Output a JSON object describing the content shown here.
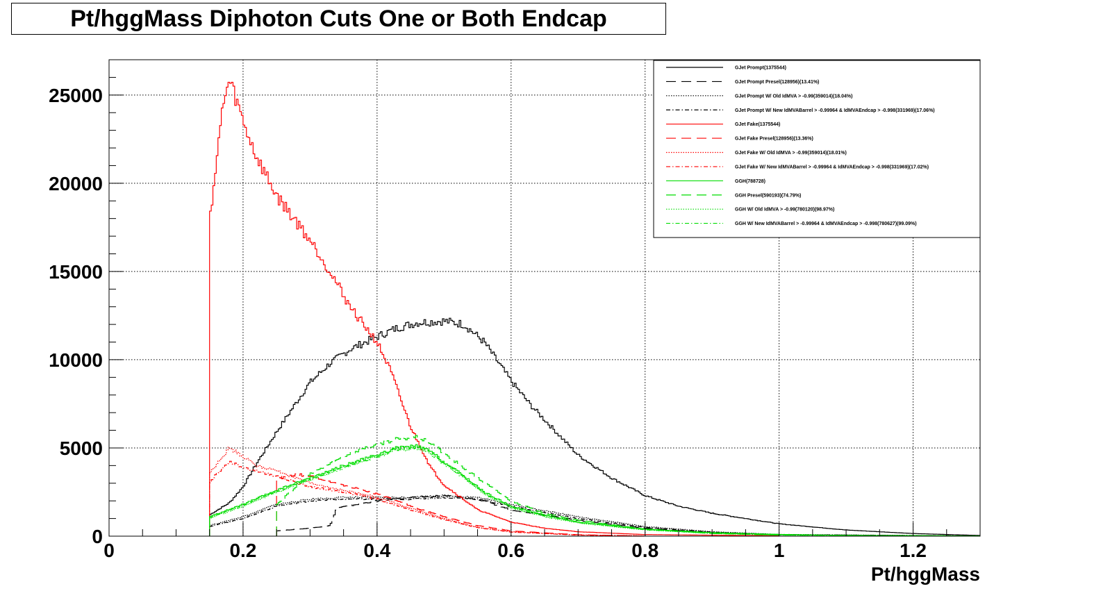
{
  "title": "Pt/hggMass Diphoton Cuts One or Both Endcap",
  "colors": {
    "prompt": "#000000",
    "fake": "#ff0000",
    "ggh": "#00dd00"
  },
  "chart_data": {
    "type": "line",
    "title": "Pt/hggMass Diphoton Cuts One or Both Endcap",
    "xlabel": "Pt/hggMass",
    "ylabel": "",
    "xlim": [
      0,
      1.3
    ],
    "ylim": [
      0,
      27000
    ],
    "grid": true,
    "legend_position": "top-right",
    "x_ticks": [
      "0",
      "0.2",
      "0.4",
      "0.6",
      "0.8",
      "1",
      "1.2"
    ],
    "y_ticks": [
      "0",
      "5000",
      "10000",
      "15000",
      "20000",
      "25000"
    ],
    "x_tick_values": [
      0,
      0.2,
      0.4,
      0.6,
      0.8,
      1.0,
      1.2
    ],
    "y_tick_values": [
      0,
      5000,
      10000,
      15000,
      20000,
      25000
    ],
    "series": [
      {
        "name": "GJet Prompt(1375544)",
        "color": "#000000",
        "style": "solid",
        "x": [
          0.15,
          0.18,
          0.2,
          0.22,
          0.25,
          0.28,
          0.3,
          0.33,
          0.36,
          0.4,
          0.43,
          0.46,
          0.5,
          0.53,
          0.56,
          0.6,
          0.63,
          0.66,
          0.7,
          0.75,
          0.8,
          0.85,
          0.9,
          1.0,
          1.1,
          1.2,
          1.3
        ],
        "y": [
          1200,
          1900,
          2800,
          4100,
          5900,
          7600,
          8700,
          9800,
          10600,
          11300,
          11800,
          12100,
          12200,
          12000,
          11000,
          8800,
          7400,
          6200,
          4600,
          3300,
          2300,
          1700,
          1300,
          700,
          350,
          150,
          40
        ]
      },
      {
        "name": "GJet Prompt Presel(128956)(13.41%)",
        "color": "#000000",
        "style": "dashed",
        "x": [
          0.25,
          0.3,
          0.33,
          0.34,
          0.4,
          0.45,
          0.5,
          0.55,
          0.6,
          0.7,
          0.8,
          0.9,
          1.0,
          1.3
        ],
        "y": [
          300,
          450,
          600,
          1600,
          2000,
          2200,
          2300,
          2100,
          1500,
          900,
          450,
          200,
          90,
          10
        ]
      },
      {
        "name": "GJet Prompt W/ Old IdMVA > -0.99(359014)(18.04%)",
        "color": "#000000",
        "style": "dotted",
        "x": [
          0.15,
          0.2,
          0.25,
          0.3,
          0.35,
          0.4,
          0.45,
          0.5,
          0.55,
          0.6,
          0.7,
          0.8,
          0.9,
          1.0,
          1.3
        ],
        "y": [
          600,
          1100,
          1800,
          2100,
          2200,
          2200,
          2200,
          2300,
          2200,
          1800,
          1100,
          550,
          250,
          100,
          10
        ]
      },
      {
        "name": "GJet Prompt W/ New IdMVABarrel > -0.99964 & IdMVAEndcap > -0.998(331969)(17.06%)",
        "color": "#000000",
        "style": "dashdot",
        "x": [
          0.15,
          0.2,
          0.25,
          0.3,
          0.35,
          0.4,
          0.45,
          0.5,
          0.55,
          0.6,
          0.7,
          0.8,
          0.9,
          1.0,
          1.3
        ],
        "y": [
          550,
          1000,
          1700,
          2000,
          2100,
          2100,
          2100,
          2200,
          2100,
          1700,
          1000,
          500,
          230,
          90,
          10
        ]
      },
      {
        "name": "GJet Fake(1375544)",
        "color": "#ff0000",
        "style": "solid",
        "x": [
          0.15,
          0.16,
          0.17,
          0.18,
          0.19,
          0.2,
          0.22,
          0.25,
          0.28,
          0.3,
          0.33,
          0.36,
          0.4,
          0.42,
          0.45,
          0.48,
          0.5,
          0.55,
          0.6,
          0.65,
          0.7,
          0.8,
          1.0
        ],
        "y": [
          18000,
          21000,
          24500,
          25800,
          24700,
          23500,
          21500,
          19300,
          17800,
          16800,
          15000,
          13000,
          11000,
          9400,
          6200,
          3900,
          2900,
          1500,
          800,
          450,
          250,
          90,
          20
        ]
      },
      {
        "name": "GJet Fake Presel(128956)(13.36%)",
        "color": "#ff0000",
        "style": "dashed",
        "x": [
          0.25,
          0.28,
          0.3,
          0.33,
          0.36,
          0.4,
          0.45,
          0.5,
          0.55,
          0.6,
          0.7,
          0.8
        ],
        "y": [
          3200,
          3500,
          3400,
          3100,
          2800,
          2400,
          1700,
          1100,
          600,
          300,
          80,
          10
        ]
      },
      {
        "name": "GJet Fake W/ Old IdMVA > -0.99(359014)(18.01%)",
        "color": "#ff0000",
        "style": "dotted",
        "x": [
          0.15,
          0.16,
          0.18,
          0.2,
          0.22,
          0.25,
          0.3,
          0.35,
          0.4,
          0.45,
          0.5,
          0.55,
          0.6,
          0.7,
          0.8
        ],
        "y": [
          3500,
          4100,
          5000,
          4500,
          4000,
          3700,
          3000,
          2600,
          2200,
          1600,
          1000,
          500,
          250,
          70,
          15
        ]
      },
      {
        "name": "GJet Fake W/ New IdMVABarrel > -0.99964 & IdMVAEndcap > -0.998(331969)(17.02%)",
        "color": "#ff0000",
        "style": "dashdot",
        "x": [
          0.15,
          0.16,
          0.18,
          0.2,
          0.22,
          0.25,
          0.3,
          0.35,
          0.4,
          0.45,
          0.5,
          0.55,
          0.6,
          0.7,
          0.8
        ],
        "y": [
          3000,
          3500,
          4200,
          3900,
          3700,
          3400,
          2800,
          2500,
          2100,
          1500,
          950,
          480,
          230,
          60,
          10
        ]
      },
      {
        "name": "GGH(788728)",
        "color": "#00dd00",
        "style": "solid",
        "x": [
          0.15,
          0.2,
          0.25,
          0.3,
          0.35,
          0.4,
          0.43,
          0.46,
          0.48,
          0.5,
          0.53,
          0.56,
          0.6,
          0.65,
          0.7,
          0.75,
          0.8,
          0.9,
          1.0,
          1.1,
          1.3
        ],
        "y": [
          1100,
          1800,
          2600,
          3300,
          4000,
          4600,
          5000,
          5100,
          4800,
          4200,
          3400,
          2500,
          1700,
          1200,
          800,
          600,
          400,
          200,
          100,
          40,
          10
        ]
      },
      {
        "name": "GGH Presel(590193)(74.79%)",
        "color": "#00dd00",
        "style": "dashed",
        "x": [
          0.25,
          0.28,
          0.3,
          0.33,
          0.36,
          0.4,
          0.43,
          0.46,
          0.48,
          0.5,
          0.55,
          0.6,
          0.65,
          0.7,
          0.8,
          0.9,
          1.0,
          1.3
        ],
        "y": [
          1800,
          2800,
          3500,
          4100,
          4700,
          5200,
          5500,
          5600,
          5300,
          4700,
          3300,
          2000,
          1300,
          900,
          400,
          150,
          60,
          10
        ]
      },
      {
        "name": "GGH W/ Old IdMVA > -0.99(780120)(98.97%)",
        "color": "#00dd00",
        "style": "dotted",
        "x": [
          0.15,
          0.2,
          0.25,
          0.3,
          0.35,
          0.4,
          0.43,
          0.46,
          0.48,
          0.5,
          0.53,
          0.56,
          0.6,
          0.65,
          0.7,
          0.8,
          0.9,
          1.0,
          1.3
        ],
        "y": [
          1000,
          1700,
          2500,
          3200,
          3900,
          4500,
          4900,
          5000,
          4700,
          4100,
          3300,
          2400,
          1600,
          1100,
          750,
          350,
          150,
          60,
          10
        ]
      },
      {
        "name": "GGH W/ New IdMVABarrel > -0.99964 & IdMVAEndcap > -0.998(780627)(99.09%)",
        "color": "#00dd00",
        "style": "dashdot",
        "x": [
          0.15,
          0.2,
          0.25,
          0.3,
          0.35,
          0.4,
          0.43,
          0.46,
          0.48,
          0.5,
          0.53,
          0.56,
          0.6,
          0.65,
          0.7,
          0.8,
          0.9,
          1.0,
          1.3
        ],
        "y": [
          1050,
          1750,
          2550,
          3250,
          3950,
          4550,
          4950,
          5050,
          4750,
          4150,
          3350,
          2450,
          1650,
          1150,
          780,
          370,
          160,
          65,
          10
        ]
      }
    ]
  }
}
